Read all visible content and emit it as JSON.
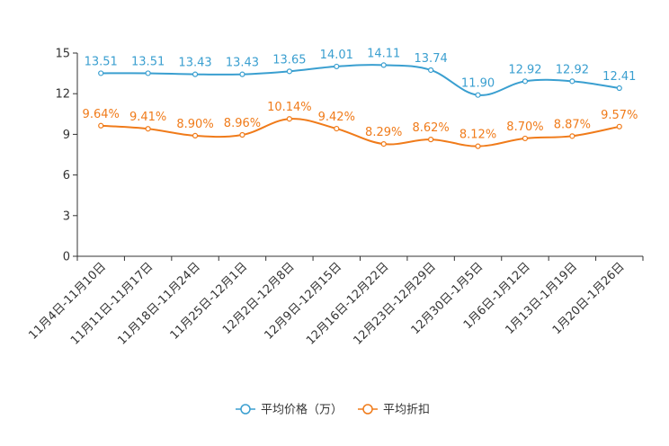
{
  "chart_data": {
    "type": "line",
    "title": "",
    "xlabel": "",
    "ylabel": "",
    "ylim": [
      0,
      15
    ],
    "yticks": [
      0,
      3,
      6,
      9,
      12,
      15
    ],
    "ytick_labels": [
      "0",
      "3",
      "6",
      "9",
      "12",
      "15"
    ],
    "grid": false,
    "legend_position": "bottom-center",
    "categories": [
      "11月4日-11月10日",
      "11月11日-11月17日",
      "11月18日-11月24日",
      "11月25日-12月1日",
      "12月2日-12月8日",
      "12月9日-12月15日",
      "12月16日-12月22日",
      "12月23日-12月29日",
      "12月30日-1月5日",
      "1月6日-1月12日",
      "1月13日-1月19日",
      "1月20日-1月26日"
    ],
    "series": [
      {
        "name": "平均价格（万）",
        "color": "#3a9fd0",
        "values": [
          13.51,
          13.51,
          13.43,
          13.43,
          13.65,
          14.01,
          14.11,
          13.74,
          11.9,
          12.92,
          12.92,
          12.41
        ],
        "labels": [
          "13.51",
          "13.51",
          "13.43",
          "13.43",
          "13.65",
          "14.01",
          "14.11",
          "13.74",
          "11.90",
          "12.92",
          "12.92",
          "12.41"
        ]
      },
      {
        "name": "平均折扣",
        "color": "#f07b1a",
        "values": [
          9.64,
          9.41,
          8.9,
          8.96,
          10.14,
          9.42,
          8.29,
          8.62,
          8.12,
          8.7,
          8.87,
          9.57
        ],
        "labels": [
          "9.64%",
          "9.41%",
          "8.90%",
          "8.96%",
          "10.14%",
          "9.42%",
          "8.29%",
          "8.62%",
          "8.12%",
          "8.70%",
          "8.87%",
          "9.57%"
        ]
      }
    ]
  }
}
